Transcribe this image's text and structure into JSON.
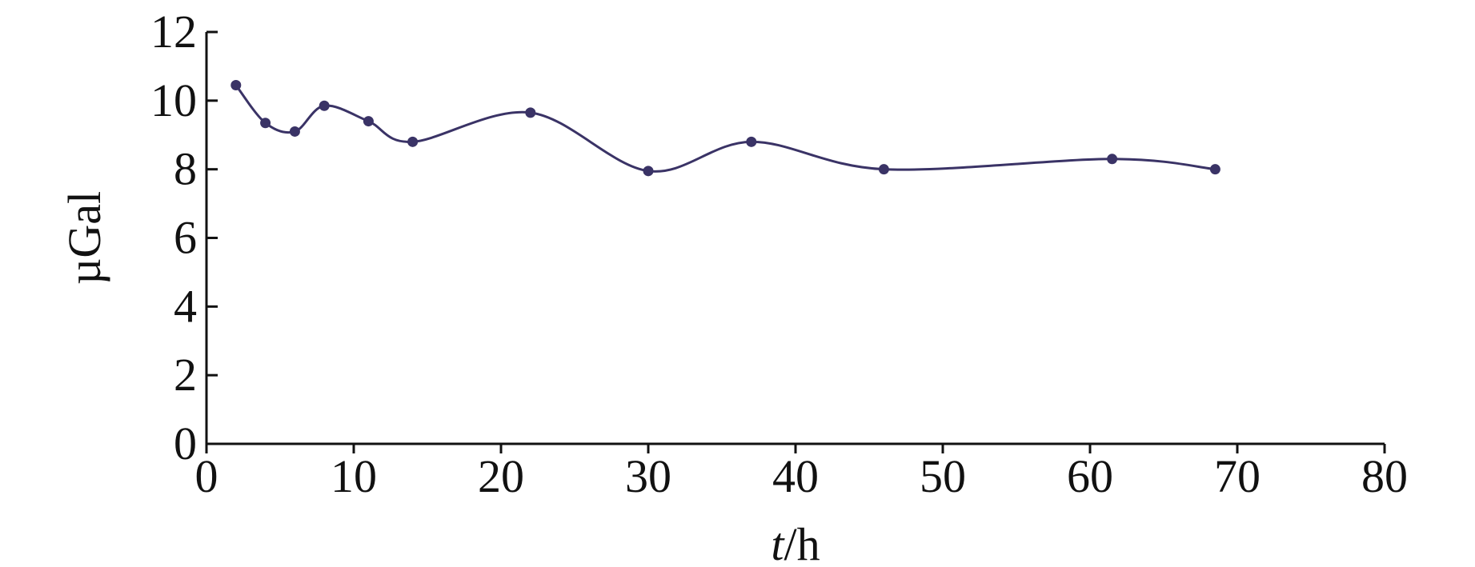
{
  "chart_data": {
    "type": "line",
    "title": "",
    "xlabel_italic": "t",
    "xlabel_rest": "/h",
    "ylabel": "µGal",
    "xlim": [
      0,
      80
    ],
    "ylim": [
      0,
      12
    ],
    "x_ticks": [
      0,
      10,
      20,
      30,
      40,
      50,
      60,
      70,
      80
    ],
    "y_ticks": [
      0,
      2,
      4,
      6,
      8,
      10,
      12
    ],
    "grid": false,
    "legend": "none",
    "series": [
      {
        "color": "#3a3366",
        "points": [
          {
            "x": 2,
            "y": 10.45
          },
          {
            "x": 4,
            "y": 9.35
          },
          {
            "x": 6,
            "y": 9.1
          },
          {
            "x": 8,
            "y": 9.85
          },
          {
            "x": 11,
            "y": 9.4
          },
          {
            "x": 14,
            "y": 8.8
          },
          {
            "x": 22,
            "y": 9.65
          },
          {
            "x": 30,
            "y": 7.95
          },
          {
            "x": 37,
            "y": 8.8
          },
          {
            "x": 46,
            "y": 8.0
          },
          {
            "x": 61.5,
            "y": 8.3
          },
          {
            "x": 68.5,
            "y": 8.0
          }
        ]
      }
    ]
  }
}
